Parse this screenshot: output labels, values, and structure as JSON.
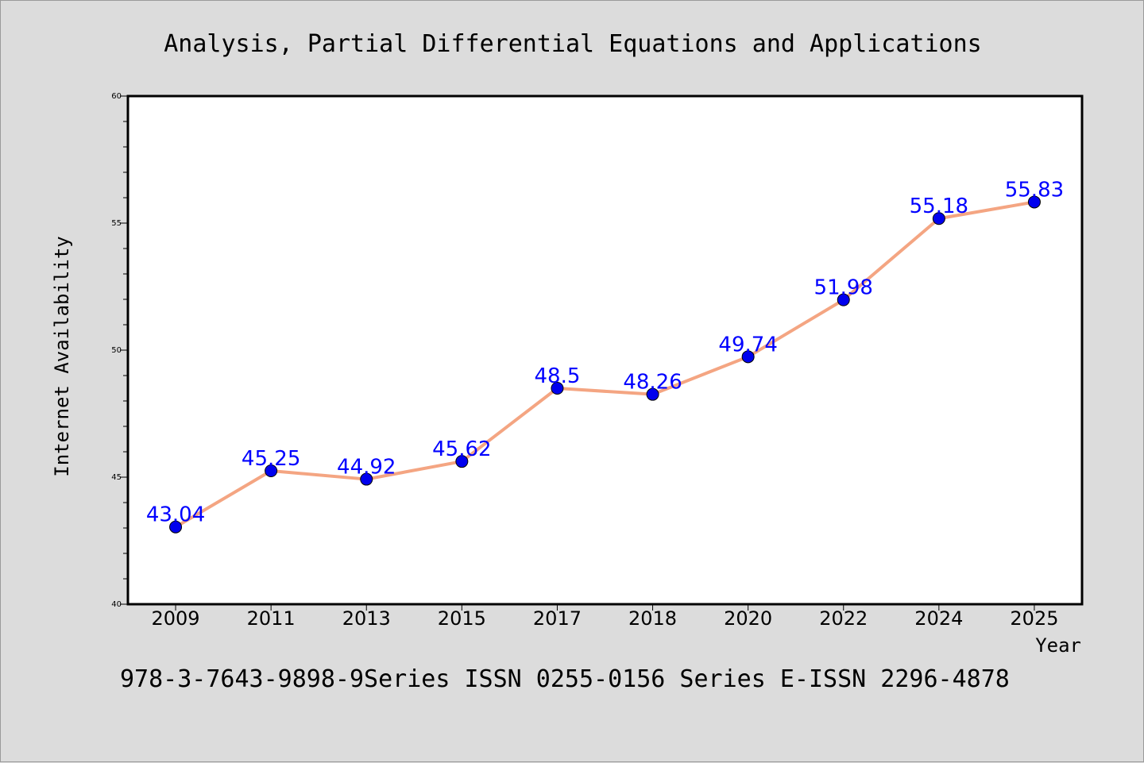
{
  "chart_data": {
    "type": "line",
    "title": "Analysis, Partial Differential Equations and Applications",
    "xlabel": "Year",
    "ylabel": "Internet Availability",
    "footer": "978-3-7643-9898-9Series ISSN 0255-0156 Series E-ISSN 2296-4878",
    "categories": [
      "2009",
      "2011",
      "2013",
      "2015",
      "2017",
      "2018",
      "2020",
      "2022",
      "2024",
      "2025"
    ],
    "values": [
      43.04,
      45.25,
      44.92,
      45.62,
      48.5,
      48.26,
      49.74,
      51.98,
      55.18,
      55.83
    ],
    "data_labels": [
      "43.04",
      "45.25",
      "44.92",
      "45.62",
      "48.5",
      "48.26",
      "49.74",
      "51.98",
      "55.18",
      "55.83"
    ],
    "ylim": [
      40,
      60
    ],
    "yticks": [
      40,
      45,
      50,
      55,
      60
    ],
    "ytick_labels": [
      "40",
      "45",
      "50",
      "55",
      "60"
    ],
    "grid": false,
    "colors": {
      "background": "#dcdcdc",
      "plot_area": "#ffffff",
      "line": "#f4a582",
      "marker": "#0000ee",
      "data_label": "#0000ff",
      "text": "#000000"
    }
  }
}
